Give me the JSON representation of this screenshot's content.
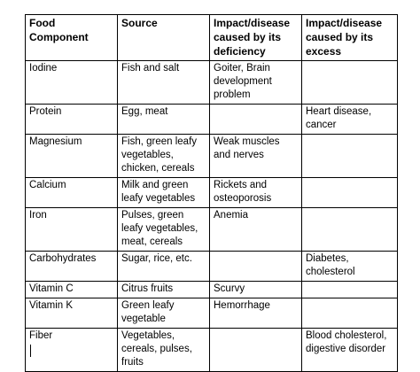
{
  "table": {
    "headers": [
      "Food Component",
      "Source",
      "Impact/disease caused by its deficiency",
      "Impact/disease caused by its excess"
    ],
    "rows": [
      [
        "Iodine",
        "Fish and salt",
        "Goiter, Brain development problem",
        ""
      ],
      [
        "Protein",
        "Egg, meat",
        "",
        "Heart disease, cancer"
      ],
      [
        "Magnesium",
        "Fish, green leafy vegetables, chicken, cereals",
        "Weak muscles and nerves",
        ""
      ],
      [
        "Calcium",
        "Milk and green leafy vegetables",
        "Rickets and osteoporosis",
        ""
      ],
      [
        "Iron",
        "Pulses, green leafy vegetables, meat, cereals",
        "Anemia",
        ""
      ],
      [
        "Carbohydrates",
        "Sugar, rice, etc.",
        "",
        "Diabetes, cholesterol"
      ],
      [
        "Vitamin C",
        "Citrus fruits",
        "Scurvy",
        ""
      ],
      [
        "Vitamin K",
        "Green leafy vegetable",
        "Hemorrhage",
        ""
      ],
      [
        "Fiber",
        "Vegetables, cereals, pulses, fruits",
        "",
        "Blood cholesterol, digestive disorder"
      ]
    ]
  }
}
